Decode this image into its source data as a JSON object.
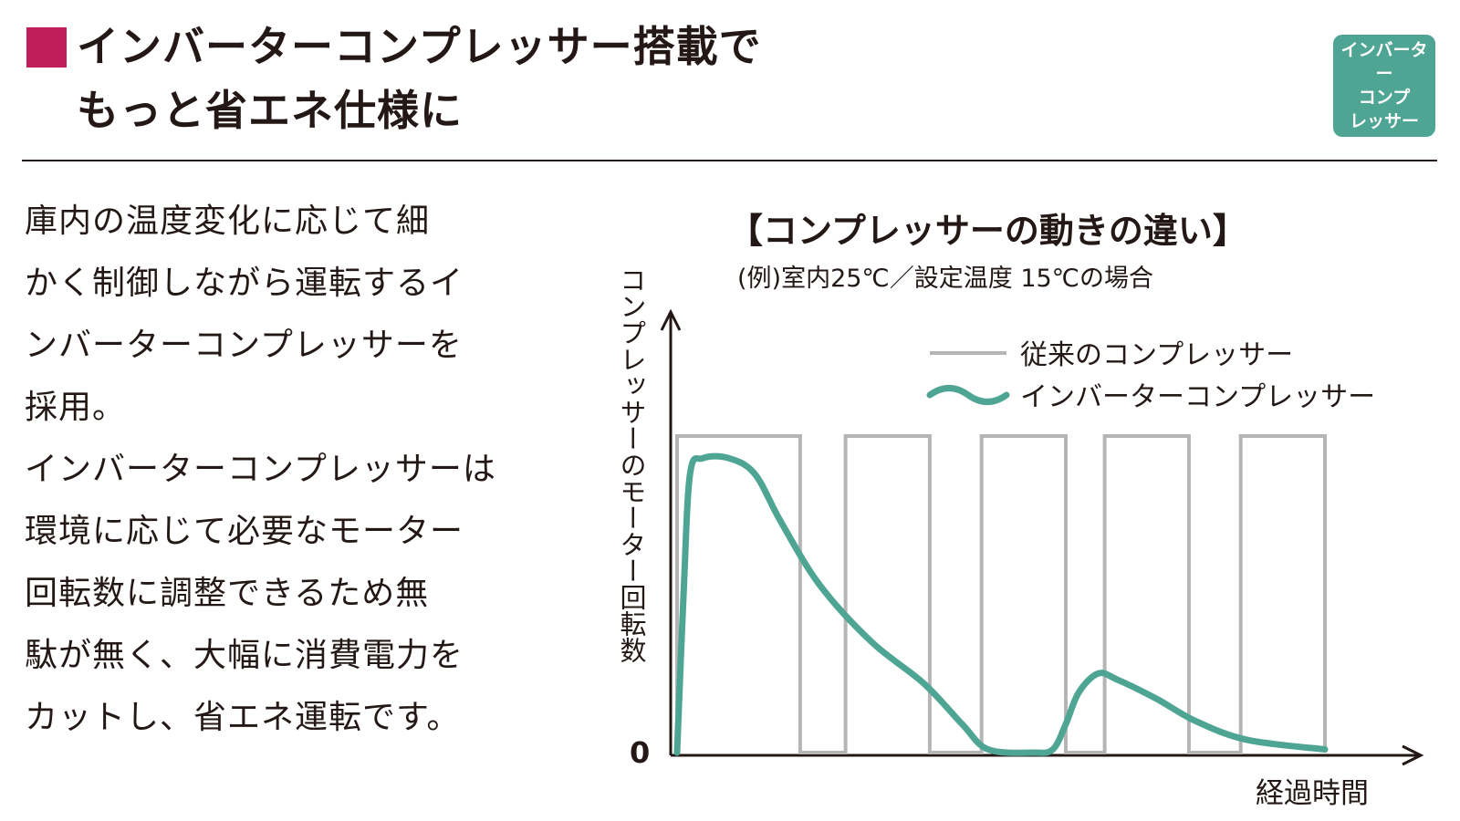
{
  "header": {
    "title_line1": "インバーターコンプレッサー搭載で",
    "title_line2": "もっと省エネ仕様に",
    "badge_lines": [
      "インバーター",
      "コンプ",
      "レッサー"
    ]
  },
  "body_text": [
    "庫内の温度変化に応じて細",
    "かく制御しながら運転するイ",
    "ンバーターコンプレッサーを",
    "採用。",
    "インバーターコンプレッサーは",
    "環境に応じて必要なモーター",
    "回転数に調整できるため無",
    "駄が無く、大幅に消費電力を",
    "カットし、省エネ運転です。"
  ],
  "colors": {
    "accent_square": "#c11d5a",
    "badge": "#4fa593",
    "inverter_line": "#4fa593",
    "conventional_line": "#b5b5b5"
  },
  "chart_data": {
    "type": "line",
    "title": "【コンプレッサーの動きの違い】",
    "subtitle": "(例)室内25℃／設定温度 15℃の場合",
    "ylabel": "コンプレッサーのモーター回転数",
    "xlabel": "経過時間",
    "y_tick_labels": [
      "0"
    ],
    "xlim": [
      0,
      100
    ],
    "ylim": [
      0,
      100
    ],
    "grid": false,
    "legend_position": "top-right",
    "series": [
      {
        "name": "従来のコンプレッサー",
        "color": "#b5b5b5",
        "points": [
          [
            0,
            0
          ],
          [
            0,
            100
          ],
          [
            19,
            100
          ],
          [
            19,
            0
          ],
          [
            26,
            0
          ],
          [
            26,
            100
          ],
          [
            39,
            100
          ],
          [
            39,
            0
          ],
          [
            47,
            0
          ],
          [
            47,
            100
          ],
          [
            60,
            100
          ],
          [
            60,
            0
          ],
          [
            66,
            0
          ],
          [
            66,
            100
          ],
          [
            79,
            100
          ],
          [
            79,
            0
          ],
          [
            87,
            0
          ],
          [
            87,
            100
          ],
          [
            100,
            100
          ],
          [
            100,
            0
          ]
        ]
      },
      {
        "name": "インバーターコンプレッサー",
        "color": "#4fa593",
        "points": [
          [
            0,
            0
          ],
          [
            1,
            50
          ],
          [
            2,
            88
          ],
          [
            4,
            93
          ],
          [
            8,
            93
          ],
          [
            12,
            88
          ],
          [
            16,
            73
          ],
          [
            22,
            53
          ],
          [
            30,
            35
          ],
          [
            38,
            22
          ],
          [
            44,
            9
          ],
          [
            48,
            1
          ],
          [
            55,
            0
          ],
          [
            58,
            1
          ],
          [
            60,
            9
          ],
          [
            62,
            19
          ],
          [
            65,
            25
          ],
          [
            68,
            23
          ],
          [
            74,
            17
          ],
          [
            80,
            10
          ],
          [
            88,
            4
          ],
          [
            100,
            1
          ]
        ]
      }
    ]
  }
}
